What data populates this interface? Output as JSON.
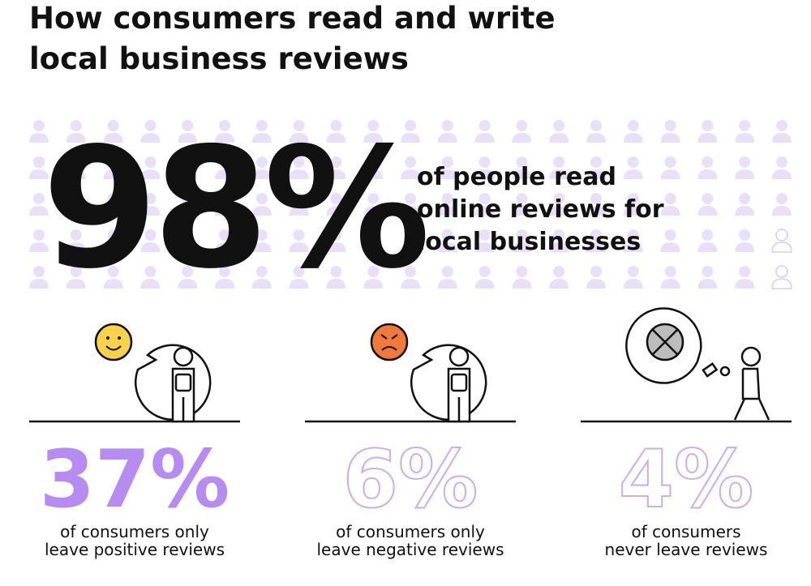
{
  "header": {
    "title_lines": [
      "How consumers read and write",
      "local business reviews"
    ]
  },
  "hero": {
    "stat": "98%",
    "caption_lines": [
      "of people read",
      "online reviews for",
      "local businesses"
    ]
  },
  "stats": [
    {
      "value": "37%",
      "caption_lines": [
        "of consumers only",
        "leave positive reviews"
      ]
    },
    {
      "value": "6%",
      "caption_lines": [
        "of consumers only",
        "leave negative reviews"
      ]
    },
    {
      "value": "4%",
      "caption_lines": [
        "of consumers",
        "never leave reviews"
      ]
    }
  ]
}
